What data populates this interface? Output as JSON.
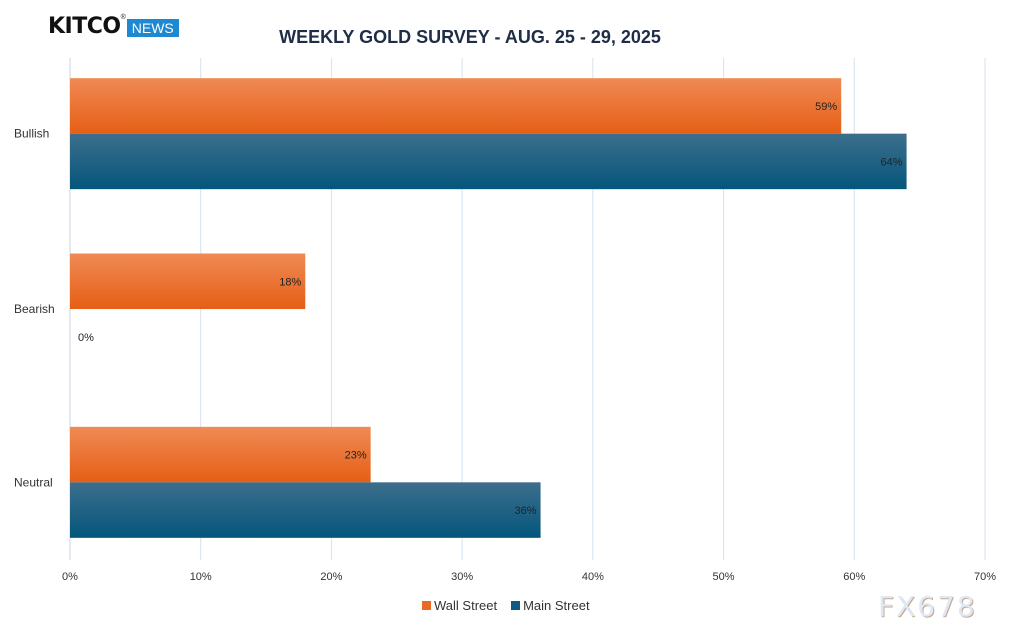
{
  "brand": {
    "logo_text": "KITCO",
    "logo_badge": "NEWS"
  },
  "watermark": "FX678",
  "chart_data": {
    "type": "bar",
    "orientation": "horizontal",
    "title": "WEEKLY GOLD SURVEY - AUG. 25 - 29, 2025",
    "categories": [
      "Bullish",
      "Bearish",
      "Neutral"
    ],
    "series": [
      {
        "name": "Wall Street",
        "values": [
          59,
          18,
          23
        ],
        "labels": [
          "59%",
          "18%",
          "23%"
        ],
        "color": "#ea6a24"
      },
      {
        "name": "Main Street",
        "values": [
          64,
          0,
          36
        ],
        "labels": [
          "64%",
          "0%",
          "36%"
        ],
        "color": "#0f5a7e"
      }
    ],
    "xlim": [
      0,
      70
    ],
    "xticks": [
      "0%",
      "10%",
      "20%",
      "30%",
      "40%",
      "50%",
      "60%",
      "70%"
    ],
    "grid": true,
    "legend_position": "bottom"
  }
}
